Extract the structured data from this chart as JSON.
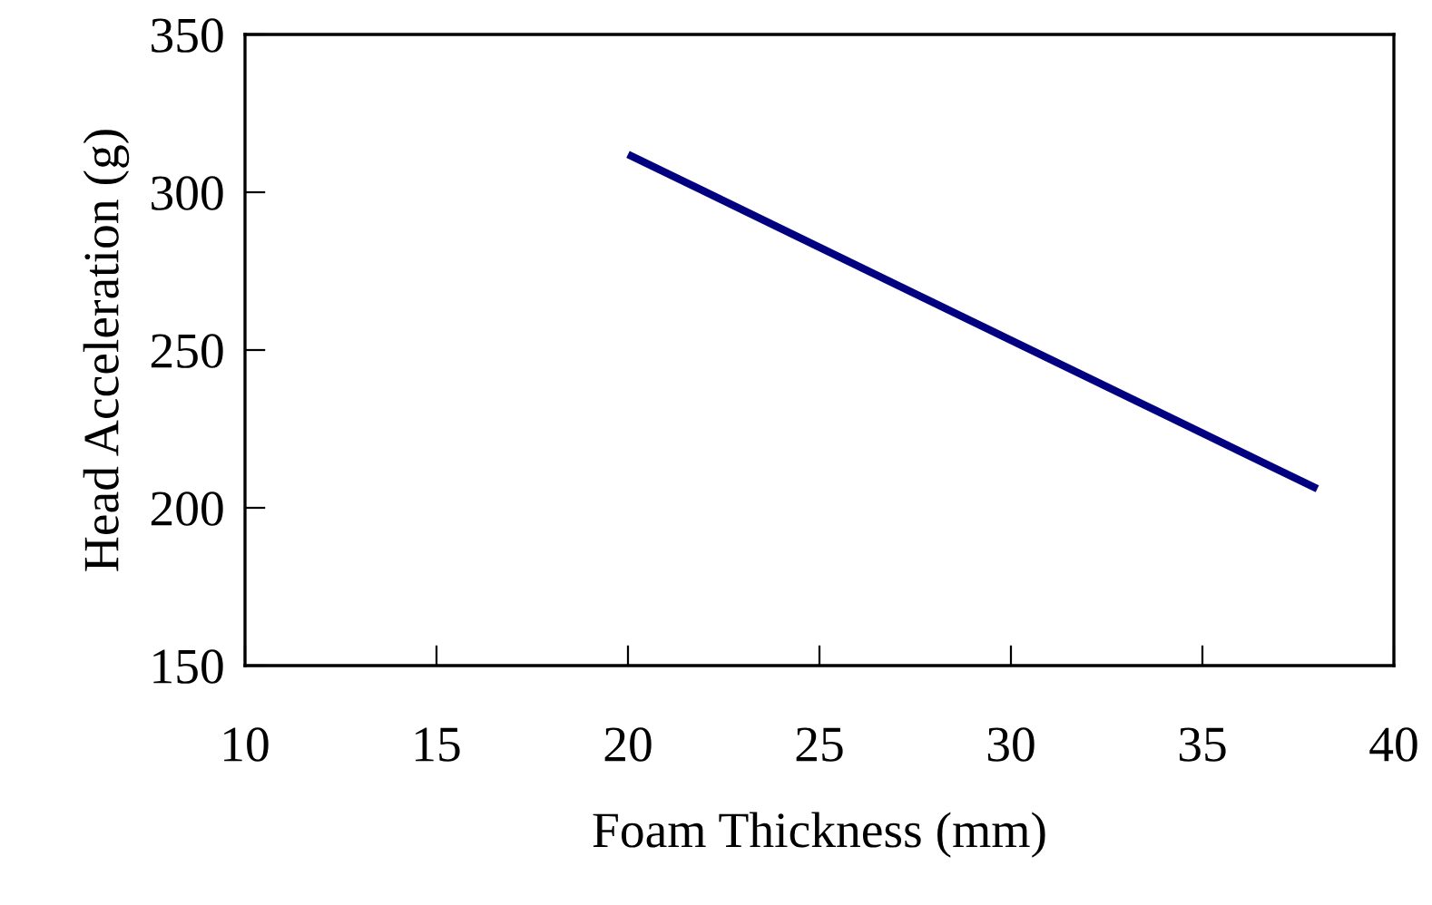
{
  "chart_data": {
    "type": "line",
    "xlabel": "Foam Thickness (mm)",
    "ylabel": "Head Acceleration (g)",
    "x": [
      20,
      38
    ],
    "series": [
      {
        "color": "#000080",
        "values": [
          312,
          206
        ]
      }
    ],
    "xlim": [
      10,
      40
    ],
    "xticks": [
      10,
      15,
      20,
      25,
      30,
      35,
      40
    ],
    "ylim": [
      150,
      350
    ],
    "yticks": [
      150,
      200,
      250,
      300,
      350
    ],
    "grid": false,
    "legend": false,
    "marker": "none",
    "line_style": "solid"
  }
}
